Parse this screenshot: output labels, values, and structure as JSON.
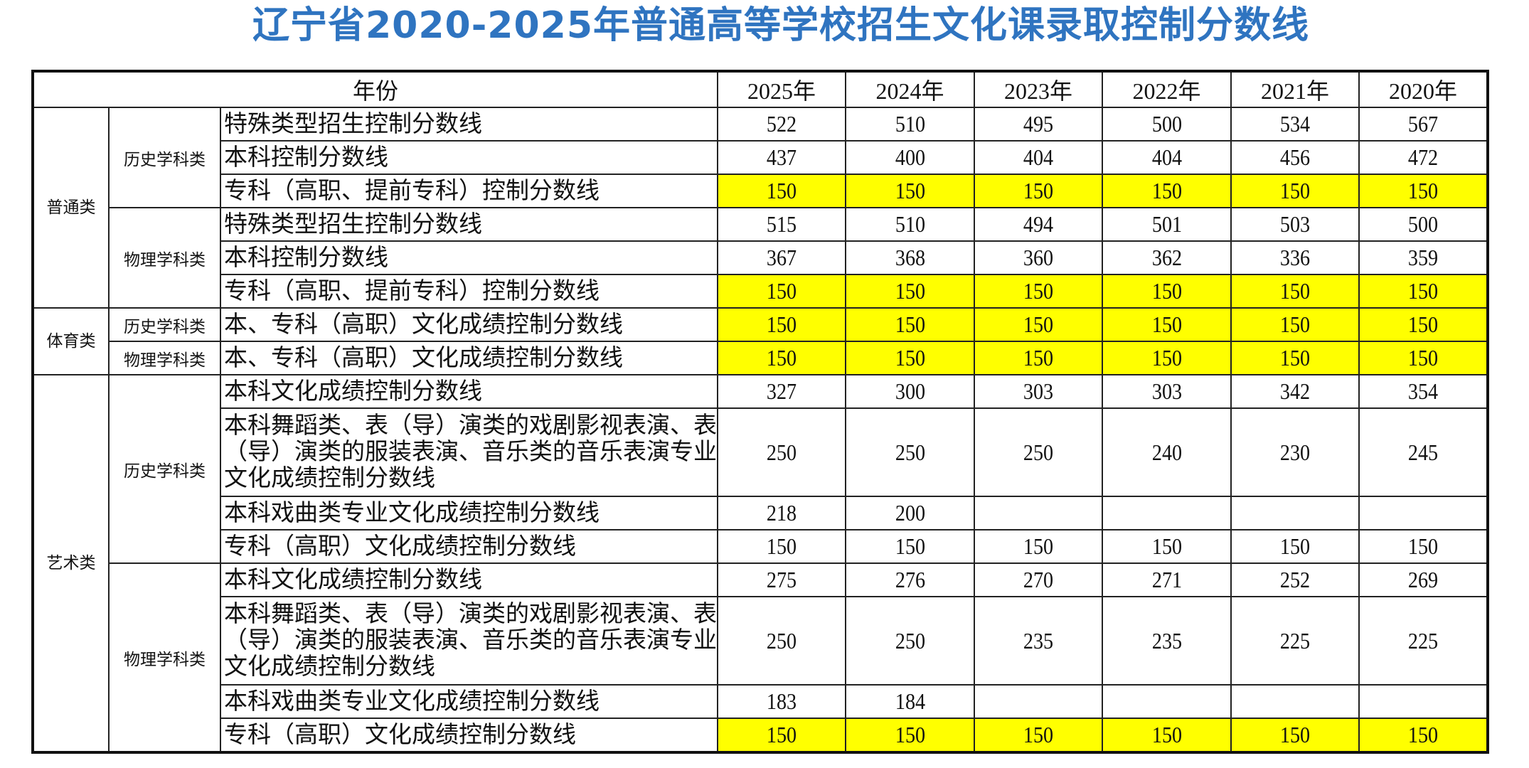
{
  "title": "辽宁省2020-2025年普通高等学校招生文化课录取控制分数线",
  "header": {
    "year_label": "年份",
    "years": [
      "2025年",
      "2024年",
      "2023年",
      "2022年",
      "2021年",
      "2020年"
    ]
  },
  "colors": {
    "title": "#2f74c0",
    "highlight": "#ffff00",
    "border": "#111111"
  },
  "categories": {
    "general": "普通类",
    "sports": "体育类",
    "arts": "艺术类"
  },
  "subjects": {
    "history": "历史学科类",
    "physics": "物理学科类"
  },
  "rows": [
    {
      "label": "特殊类型招生控制分数线",
      "values": [
        "522",
        "510",
        "495",
        "500",
        "534",
        "567"
      ],
      "highlight": false
    },
    {
      "label": "本科控制分数线",
      "values": [
        "437",
        "400",
        "404",
        "404",
        "456",
        "472"
      ],
      "highlight": false
    },
    {
      "label": "专科（高职、提前专科）控制分数线",
      "values": [
        "150",
        "150",
        "150",
        "150",
        "150",
        "150"
      ],
      "highlight": true
    },
    {
      "label": "特殊类型招生控制分数线",
      "values": [
        "515",
        "510",
        "494",
        "501",
        "503",
        "500"
      ],
      "highlight": false
    },
    {
      "label": "本科控制分数线",
      "values": [
        "367",
        "368",
        "360",
        "362",
        "336",
        "359"
      ],
      "highlight": false
    },
    {
      "label": "专科（高职、提前专科）控制分数线",
      "values": [
        "150",
        "150",
        "150",
        "150",
        "150",
        "150"
      ],
      "highlight": true
    },
    {
      "label": "本、专科（高职）文化成绩控制分数线",
      "values": [
        "150",
        "150",
        "150",
        "150",
        "150",
        "150"
      ],
      "highlight": true
    },
    {
      "label": "本、专科（高职）文化成绩控制分数线",
      "values": [
        "150",
        "150",
        "150",
        "150",
        "150",
        "150"
      ],
      "highlight": true
    },
    {
      "label": "本科文化成绩控制分数线",
      "values": [
        "327",
        "300",
        "303",
        "303",
        "342",
        "354"
      ],
      "highlight": false
    },
    {
      "label": "本科舞蹈类、表（导）演类的戏剧影视表演、表（导）演类的服装表演、音乐类的音乐表演专业文化成绩控制分数线",
      "values": [
        "250",
        "250",
        "250",
        "240",
        "230",
        "245"
      ],
      "highlight": false
    },
    {
      "label": "本科戏曲类专业文化成绩控制分数线",
      "values": [
        "218",
        "200",
        "",
        "",
        "",
        ""
      ],
      "highlight": false
    },
    {
      "label": "专科（高职）文化成绩控制分数线",
      "values": [
        "150",
        "150",
        "150",
        "150",
        "150",
        "150"
      ],
      "highlight": false
    },
    {
      "label": "本科文化成绩控制分数线",
      "values": [
        "275",
        "276",
        "270",
        "271",
        "252",
        "269"
      ],
      "highlight": false
    },
    {
      "label": "本科舞蹈类、表（导）演类的戏剧影视表演、表（导）演类的服装表演、音乐类的音乐表演专业文化成绩控制分数线",
      "values": [
        "250",
        "250",
        "235",
        "235",
        "225",
        "225"
      ],
      "highlight": false
    },
    {
      "label": "本科戏曲类专业文化成绩控制分数线",
      "values": [
        "183",
        "184",
        "",
        "",
        "",
        ""
      ],
      "highlight": false
    },
    {
      "label": "专科（高职）文化成绩控制分数线",
      "values": [
        "150",
        "150",
        "150",
        "150",
        "150",
        "150"
      ],
      "highlight": true
    }
  ],
  "empty_marker": "——"
}
